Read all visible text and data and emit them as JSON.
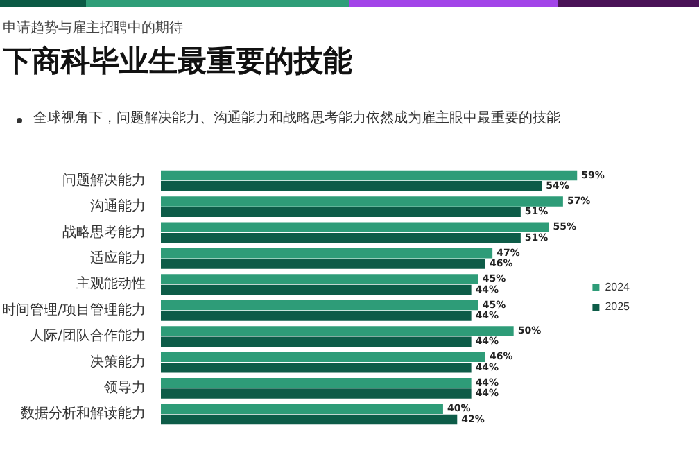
{
  "chart_data": {
    "type": "bar",
    "orientation": "horizontal",
    "title": "下商科毕业生最重要的技能",
    "subtitle": "全球视角下，问题解决能力、沟通能力和战略思考能力依然成为雇主眼中最重要的技能",
    "annotations": [
      "申请趋势与雇主招聘中的期待"
    ],
    "categories": [
      "问题解决能力",
      "沟通能力",
      "战略思考能力",
      "适应能力",
      "主观能动性",
      "时间管理/项目管理能力",
      "人际/团队合作能力",
      "决策能力",
      "领导力",
      "数据分析和解读能力"
    ],
    "series": [
      {
        "name": "2024",
        "color": "#2e9c78",
        "values": [
          59,
          57,
          55,
          47,
          45,
          45,
          50,
          46,
          44,
          40
        ],
        "value_labels": [
          "59%",
          "57%",
          "55%",
          "47%",
          "45%",
          "45%",
          "50%",
          "46%",
          "44%",
          "40%"
        ]
      },
      {
        "name": "2025",
        "color": "#0d5c48",
        "values": [
          54,
          51,
          51,
          46,
          44,
          44,
          44,
          44,
          44,
          42
        ],
        "value_labels": [
          "54%",
          "51%",
          "51%",
          "46%",
          "44%",
          "44%",
          "44%",
          "44%",
          "44%",
          "42%"
        ]
      }
    ],
    "tick_labels": false,
    "legend": "right"
  }
}
